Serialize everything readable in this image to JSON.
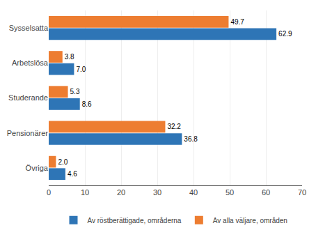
{
  "chart_data": {
    "type": "bar",
    "orientation": "horizontal",
    "categories": [
      "Sysselsatta",
      "Arbetslösa",
      "Studerande",
      "Pensionärer",
      "Övriga"
    ],
    "series": [
      {
        "name": "Av röstberättigade, områderna",
        "color": "#2e75b6",
        "values": [
          62.9,
          7.0,
          8.6,
          36.8,
          4.6
        ],
        "value_labels": [
          "62.9",
          "7.0",
          "8.6",
          "36.8",
          "4.6"
        ]
      },
      {
        "name": "Av alla väljare, områden",
        "color": "#ed7d31",
        "values": [
          49.7,
          3.8,
          5.3,
          32.2,
          2.0
        ],
        "value_labels": [
          "49.7",
          "3.8",
          "5.3",
          "32.2",
          "2.0"
        ]
      }
    ],
    "xlim": [
      0,
      70
    ],
    "xticks": [
      0,
      10,
      20,
      30,
      40,
      50,
      60,
      70
    ],
    "grid": true,
    "data_labels": true,
    "legend": "bottom"
  }
}
